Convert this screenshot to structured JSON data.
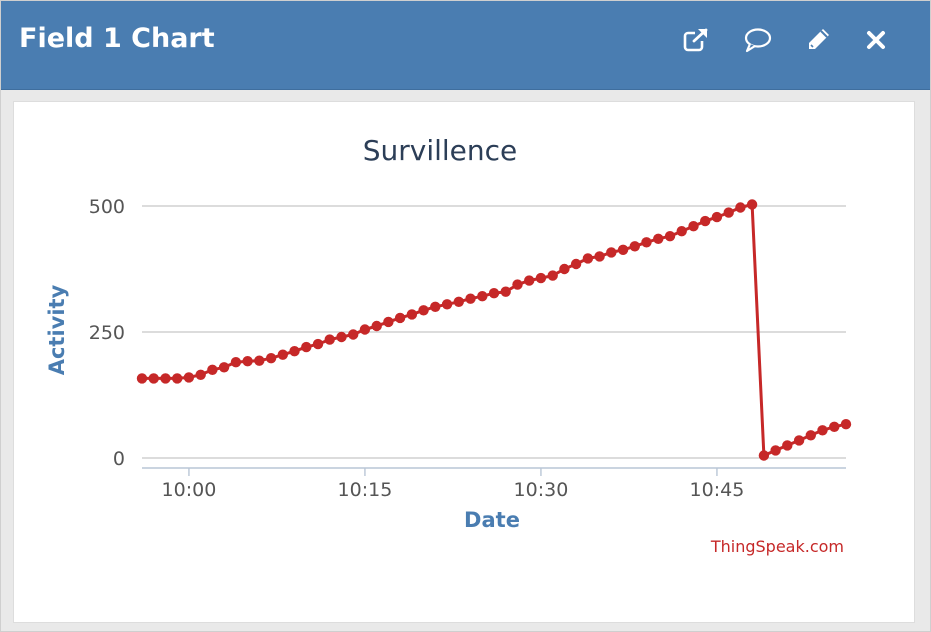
{
  "header": {
    "title": "Field 1 Chart",
    "icons": [
      "external-link-icon",
      "comment-icon",
      "pencil-icon",
      "close-icon"
    ]
  },
  "colors": {
    "header_bg": "#4a7db1",
    "series": "#c62828",
    "axis_title": "#4a7db1"
  },
  "chart_data": {
    "type": "line",
    "title": "Survillence",
    "xlabel": "Date",
    "ylabel": "Activity",
    "ylim": [
      0,
      500
    ],
    "yticks": [
      0,
      250,
      500
    ],
    "xticks": [
      "10:00",
      "10:15",
      "10:30",
      "10:45"
    ],
    "xlim": [
      "09:56",
      "10:56"
    ],
    "grid": true,
    "credit": "ThingSpeak.com",
    "series": [
      {
        "x": [
          "09:56",
          "09:57",
          "09:58",
          "09:59",
          "10:00",
          "10:01",
          "10:02",
          "10:03",
          "10:04",
          "10:05",
          "10:06",
          "10:07",
          "10:08",
          "10:09",
          "10:10",
          "10:11",
          "10:12",
          "10:13",
          "10:14",
          "10:15",
          "10:16",
          "10:17",
          "10:18",
          "10:19",
          "10:20",
          "10:21",
          "10:22",
          "10:23",
          "10:24",
          "10:25",
          "10:26",
          "10:27",
          "10:28",
          "10:29",
          "10:30",
          "10:31",
          "10:32",
          "10:33",
          "10:34",
          "10:35",
          "10:36",
          "10:37",
          "10:38",
          "10:39",
          "10:40",
          "10:41",
          "10:42",
          "10:43",
          "10:44",
          "10:45",
          "10:46",
          "10:47",
          "10:48",
          "10:49",
          "10:50",
          "10:51",
          "10:52",
          "10:53",
          "10:54",
          "10:55",
          "10:56"
        ],
        "values": [
          158,
          158,
          158,
          158,
          160,
          165,
          175,
          180,
          190,
          192,
          193,
          198,
          205,
          212,
          220,
          226,
          235,
          240,
          245,
          255,
          262,
          270,
          278,
          285,
          293,
          300,
          305,
          310,
          316,
          321,
          327,
          330,
          344,
          352,
          357,
          362,
          375,
          385,
          396,
          400,
          408,
          413,
          420,
          428,
          435,
          440,
          450,
          460,
          470,
          478,
          487,
          497,
          503,
          5,
          15,
          25,
          35,
          45,
          55,
          62,
          67
        ]
      }
    ]
  }
}
